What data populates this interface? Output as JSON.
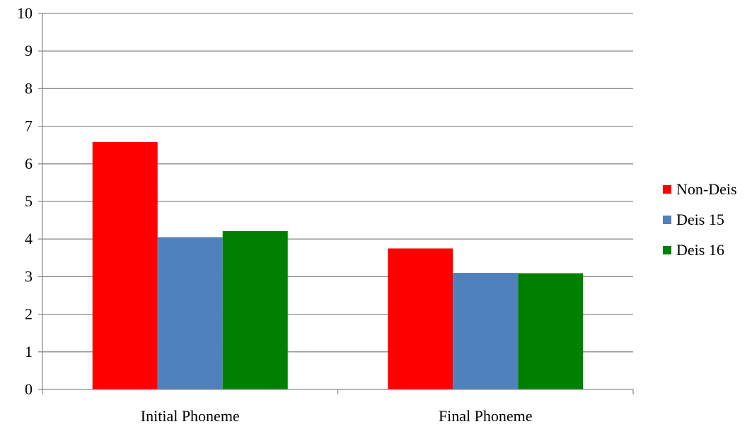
{
  "chart_data": {
    "type": "bar",
    "categories": [
      "Initial Phoneme",
      "Final Phoneme"
    ],
    "series": [
      {
        "name": "Non-Deis",
        "values": [
          6.58,
          3.75
        ],
        "color": "#ff0000"
      },
      {
        "name": "Deis 15",
        "values": [
          4.05,
          3.1
        ],
        "color": "#4f81bd"
      },
      {
        "name": "Deis 16",
        "values": [
          4.21,
          3.09
        ],
        "color": "#008000"
      }
    ],
    "yticks": [
      "0",
      "1",
      "2",
      "3",
      "4",
      "5",
      "6",
      "7",
      "8",
      "9",
      "10"
    ],
    "ylim": [
      0,
      10
    ],
    "grid": true,
    "legend_position": "right",
    "title": "",
    "xlabel": "",
    "ylabel": ""
  }
}
